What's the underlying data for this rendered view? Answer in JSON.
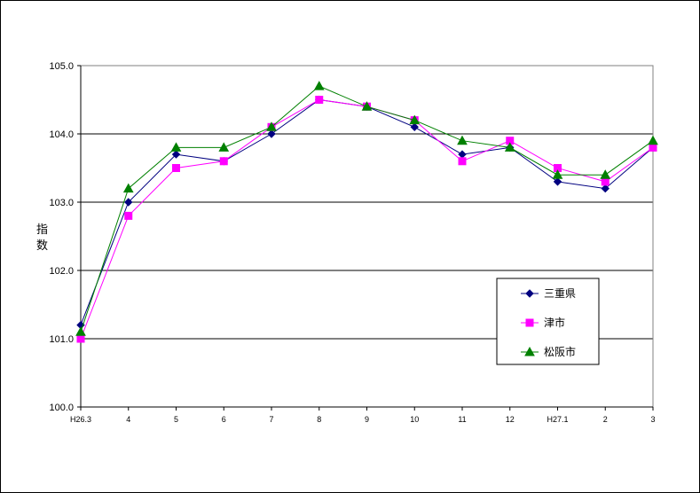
{
  "chart_data": {
    "type": "line",
    "title": "",
    "xlabel": "",
    "ylabel": "指\n数",
    "ylim": [
      100.0,
      105.0
    ],
    "yticks": [
      "100.0",
      "101.0",
      "102.0",
      "103.0",
      "104.0",
      "105.0"
    ],
    "categories": [
      "H26.3",
      "4",
      "5",
      "6",
      "7",
      "8",
      "9",
      "10",
      "11",
      "12",
      "H27.1",
      "2",
      "3"
    ],
    "grid": true,
    "legend_position": "right",
    "series": [
      {
        "name": "三重県",
        "color": "#000080",
        "marker": "diamond",
        "values": [
          101.2,
          103.0,
          103.7,
          103.6,
          104.0,
          104.5,
          104.4,
          104.1,
          103.7,
          103.8,
          103.3,
          103.2,
          103.8
        ]
      },
      {
        "name": "津市",
        "color": "#ff00ff",
        "marker": "square",
        "values": [
          101.0,
          102.8,
          103.5,
          103.6,
          104.1,
          104.5,
          104.4,
          104.2,
          103.6,
          103.9,
          103.5,
          103.3,
          103.8
        ]
      },
      {
        "name": "松阪市",
        "color": "#008000",
        "marker": "triangle",
        "values": [
          101.1,
          103.2,
          103.8,
          103.8,
          104.1,
          104.7,
          104.4,
          104.2,
          103.9,
          103.8,
          103.4,
          103.4,
          103.9
        ]
      }
    ]
  }
}
